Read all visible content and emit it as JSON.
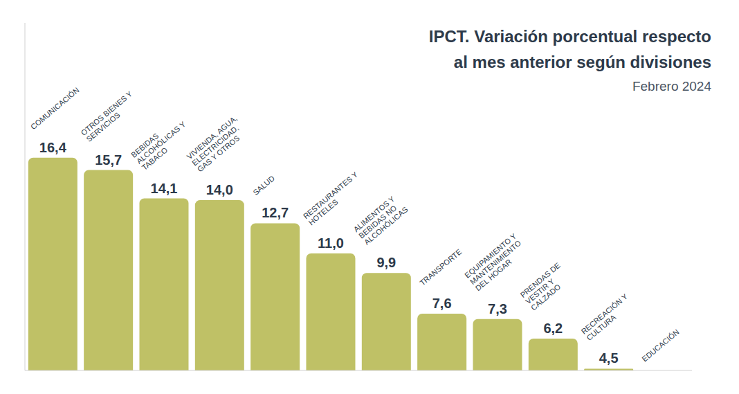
{
  "chart_data": {
    "type": "bar",
    "title": "IPCT. Variación porcentual respecto al mes anterior según divisiones",
    "subtitle": "Febrero 2024",
    "categories": [
      "COMUNICACIÓN",
      "OTROS BIENES Y SERVICIOS",
      "BEBIDAS ALCOHÓLICAS Y TABACO",
      "VIVIENDA, AGUA, ELECTRICIDAD, GAS Y OTROS",
      "SALUD",
      "RESTAURANTES Y HOTELES",
      "ALIMENTOS Y BEBIDAS NO ALCOHÓLICAS",
      "TRANSPORTE",
      "EQUIPAMIENTO Y MANTENIMIENTO DEL HOGAR",
      "PRENDAS DE VESTIR Y CALZADO",
      "RECREACIÓN Y CULTURA",
      "EDUCACIÓN"
    ],
    "values": [
      16.4,
      15.7,
      14.1,
      14.0,
      12.7,
      11.0,
      9.9,
      7.6,
      7.3,
      6.2,
      4.5,
      null
    ],
    "value_labels": [
      "16,4",
      "15,7",
      "14,1",
      "14,0",
      "12,7",
      "11,0",
      "9,9",
      "7,6",
      "7,3",
      "6,2",
      "4,5",
      null
    ],
    "color": "#bfc166",
    "ylim": [
      4.4,
      24
    ],
    "data_labels": true,
    "tick_labels": false,
    "grid": false
  }
}
